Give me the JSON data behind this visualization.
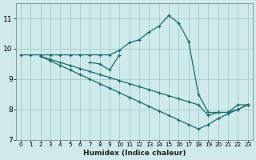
{
  "xlabel": "Humidex (Indice chaleur)",
  "xlim": [
    -0.5,
    23.5
  ],
  "ylim": [
    7,
    11.5
  ],
  "yticks": [
    7,
    8,
    9,
    10,
    11
  ],
  "xticks": [
    0,
    1,
    2,
    3,
    4,
    5,
    6,
    7,
    8,
    9,
    10,
    11,
    12,
    13,
    14,
    15,
    16,
    17,
    18,
    19,
    20,
    21,
    22,
    23
  ],
  "background_color": "#ceeaea",
  "grid_color": "#a8cccc",
  "line_color": "#1c6b6b",
  "lines": [
    {
      "x": [
        0,
        1,
        2,
        3,
        4,
        5,
        6,
        7,
        8,
        9,
        10,
        11,
        12,
        13,
        14,
        15,
        16,
        17,
        18,
        19,
        20,
        21,
        22,
        23
      ],
      "y": [
        9.8,
        9.8,
        9.8,
        9.8,
        9.8,
        9.8,
        9.8,
        9.8,
        9.8,
        9.8,
        9.95,
        10.2,
        10.3,
        10.55,
        10.75,
        11.1,
        10.85,
        10.25,
        8.5,
        7.9,
        7.9,
        7.9,
        8.15,
        8.15
      ]
    },
    {
      "x": [
        2,
        3,
        4,
        5,
        6,
        7,
        8,
        9,
        10,
        11,
        12,
        13,
        14,
        15,
        16,
        17,
        18,
        19,
        20,
        21,
        22,
        23
      ],
      "y": [
        9.75,
        9.6,
        9.45,
        9.3,
        9.15,
        9.0,
        8.85,
        8.7,
        8.55,
        8.4,
        8.25,
        8.1,
        7.95,
        7.8,
        7.65,
        7.5,
        7.35,
        7.5,
        7.7,
        7.85,
        8.0,
        8.15
      ]
    },
    {
      "x": [
        2,
        3,
        4,
        5,
        6,
        7,
        8,
        9,
        10,
        11,
        12,
        13,
        14,
        15,
        16,
        17,
        18,
        19,
        20,
        21,
        22,
        23
      ],
      "y": [
        9.75,
        9.65,
        9.55,
        9.45,
        9.35,
        9.25,
        9.15,
        9.05,
        8.95,
        8.85,
        8.75,
        8.65,
        8.55,
        8.45,
        8.35,
        8.25,
        8.15,
        7.8,
        7.9,
        7.9,
        8.0,
        8.15
      ]
    },
    {
      "x": [
        7,
        8,
        9,
        10
      ],
      "y": [
        9.55,
        9.5,
        9.3,
        9.8
      ]
    }
  ]
}
